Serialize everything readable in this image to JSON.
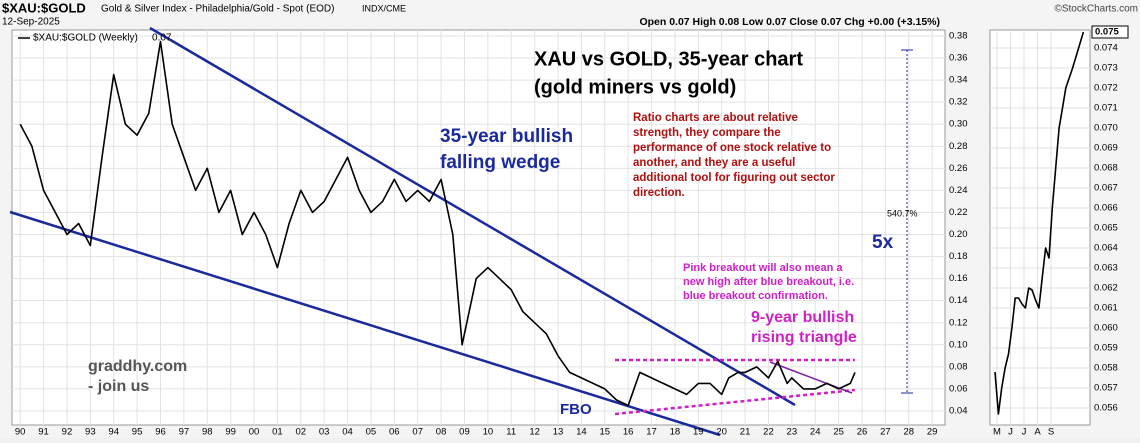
{
  "chart_data": [
    {
      "type": "line",
      "title": "$XAU:$GOLD",
      "subtitle": "Gold & Silver Index - Philadelphia/Gold - Spot (EOD)",
      "exchange": "INDX/CME",
      "date": "12-Sep-2025",
      "source": "©StockCharts.com",
      "quote": "Open 0.07 High 0.08 Low 0.07 Close 0.07 Chg +0.00 (+3.15%)",
      "last_label": "0.07",
      "grid": true,
      "annotations": {
        "headline": [
          "XAU vs GOLD, 35-year chart",
          "(gold miners vs gold)"
        ],
        "wedge": [
          "35-year bullish",
          "falling wedge"
        ],
        "note": [
          "Ratio charts are about relative",
          "strength, they compare the",
          "performance of one stock relative to",
          "another, and they are a useful",
          "additional tool for figuring out sector",
          "direction."
        ],
        "gain": "540.7%",
        "multiple": "5x",
        "pink": [
          "Pink breakout will also mean a",
          "new high after blue breakout, i.e.",
          "blue breakout confirmation."
        ],
        "triangle": [
          "9-year bullish",
          "rising triangle"
        ],
        "site": [
          "graddhy.com",
          "- join us"
        ],
        "fbo": "FBO"
      },
      "xlim": [
        1989.65,
        2029.55
      ],
      "ylim": [
        0.0273,
        0.3854
      ],
      "xticks": [
        {
          "value": 1990,
          "label": "90"
        },
        {
          "value": 1991,
          "label": "91"
        },
        {
          "value": 1992,
          "label": "92"
        },
        {
          "value": 1993,
          "label": "93"
        },
        {
          "value": 1994,
          "label": "94"
        },
        {
          "value": 1995,
          "label": "95"
        },
        {
          "value": 1996,
          "label": "96"
        },
        {
          "value": 1997,
          "label": "97"
        },
        {
          "value": 1998,
          "label": "98"
        },
        {
          "value": 1999,
          "label": "99"
        },
        {
          "value": 2000,
          "label": "00"
        },
        {
          "value": 2001,
          "label": "01"
        },
        {
          "value": 2002,
          "label": "02"
        },
        {
          "value": 2003,
          "label": "03"
        },
        {
          "value": 2004,
          "label": "04"
        },
        {
          "value": 2005,
          "label": "05"
        },
        {
          "value": 2006,
          "label": "06"
        },
        {
          "value": 2007,
          "label": "07"
        },
        {
          "value": 2008,
          "label": "08"
        },
        {
          "value": 2009,
          "label": "09"
        },
        {
          "value": 2010,
          "label": "10"
        },
        {
          "value": 2011,
          "label": "11"
        },
        {
          "value": 2012,
          "label": "12"
        },
        {
          "value": 2013,
          "label": "13"
        },
        {
          "value": 2014,
          "label": "14"
        },
        {
          "value": 2015,
          "label": "15"
        },
        {
          "value": 2016,
          "label": "16"
        },
        {
          "value": 2017,
          "label": "17"
        },
        {
          "value": 2018,
          "label": "18"
        },
        {
          "value": 2019,
          "label": "19"
        },
        {
          "value": 2020,
          "label": "20"
        },
        {
          "value": 2021,
          "label": "21"
        },
        {
          "value": 2022,
          "label": "22"
        },
        {
          "value": 2023,
          "label": "23"
        },
        {
          "value": 2024,
          "label": "24"
        },
        {
          "value": 2025,
          "label": "25"
        },
        {
          "value": 2026,
          "label": "26"
        },
        {
          "value": 2027,
          "label": "27"
        },
        {
          "value": 2028,
          "label": "28"
        },
        {
          "value": 2029,
          "label": "29"
        }
      ],
      "yticks": [
        0.04,
        0.06,
        0.08,
        {
          "value": 0.1,
          "label": "0.10"
        },
        0.12,
        0.14,
        0.16,
        0.18,
        {
          "value": 0.2,
          "label": "0.20"
        },
        0.22,
        0.24,
        0.26,
        0.28,
        {
          "value": 0.3,
          "label": "0.30"
        },
        0.32,
        0.34,
        0.36,
        0.38
      ],
      "x": [
        1990,
        1990.5,
        1991,
        1991.5,
        1992,
        1992.5,
        1993,
        1993.5,
        1994,
        1994.5,
        1995,
        1995.5,
        1996,
        1996.5,
        1997,
        1997.5,
        1998,
        1998.5,
        1999,
        1999.5,
        2000,
        2000.5,
        2001,
        2001.5,
        2002,
        2002.5,
        2003,
        2003.5,
        2004,
        2004.5,
        2005,
        2005.5,
        2006,
        2006.5,
        2007,
        2007.5,
        2008,
        2008.5,
        2008.9,
        2009.5,
        2010,
        2010.5,
        2011,
        2011.5,
        2012,
        2012.5,
        2013,
        2013.5,
        2014,
        2014.5,
        2015,
        2015.5,
        2016,
        2016.5,
        2017,
        2017.5,
        2018,
        2018.5,
        2019,
        2019.5,
        2020,
        2020.3,
        2020.7,
        2021,
        2021.5,
        2022,
        2022.4,
        2022.8,
        2023,
        2023.5,
        2024,
        2024.5,
        2025,
        2025.5,
        2025.7
      ],
      "series": [
        {
          "name": "$XAU:$GOLD (Weekly)",
          "color": "#000000",
          "values": [
            0.3,
            0.28,
            0.24,
            0.22,
            0.2,
            0.21,
            0.19,
            0.27,
            0.345,
            0.3,
            0.29,
            0.31,
            0.375,
            0.3,
            0.27,
            0.24,
            0.26,
            0.22,
            0.24,
            0.2,
            0.22,
            0.2,
            0.17,
            0.21,
            0.24,
            0.22,
            0.23,
            0.25,
            0.27,
            0.24,
            0.22,
            0.23,
            0.25,
            0.23,
            0.24,
            0.23,
            0.25,
            0.2,
            0.1,
            0.16,
            0.17,
            0.16,
            0.15,
            0.13,
            0.12,
            0.11,
            0.09,
            0.075,
            0.07,
            0.065,
            0.06,
            0.05,
            0.045,
            0.075,
            0.07,
            0.065,
            0.06,
            0.055,
            0.065,
            0.065,
            0.055,
            0.07,
            0.075,
            0.075,
            0.08,
            0.07,
            0.085,
            0.065,
            0.07,
            0.06,
            0.06,
            0.065,
            0.06,
            0.065,
            0.075
          ]
        }
      ]
    },
    {
      "type": "line",
      "current_value_label": "0.075",
      "grid": true,
      "xlim": [
        2.48,
        9.89
      ],
      "ylim": [
        0.05515,
        0.0749
      ],
      "xticks": [
        {
          "value": 3,
          "label": "M"
        },
        {
          "value": 4,
          "label": "J"
        },
        {
          "value": 5,
          "label": "J"
        },
        {
          "value": 6,
          "label": "A"
        },
        {
          "value": 7,
          "label": "S"
        }
      ],
      "yticks": [
        0.056,
        0.057,
        0.058,
        0.059,
        {
          "value": 0.06,
          "label": "0.060"
        },
        0.061,
        0.062,
        0.063,
        0.064,
        0.065,
        0.066,
        0.067,
        0.068,
        0.069,
        {
          "value": 0.07,
          "label": "0.070"
        },
        0.071,
        0.072,
        0.073,
        0.074
      ],
      "x": [
        2.85,
        3.1,
        3.35,
        3.6,
        3.85,
        4.1,
        4.35,
        4.6,
        4.85,
        5.1,
        5.35,
        5.6,
        5.85,
        6.1,
        6.35,
        6.6,
        6.85,
        7.1,
        7.35,
        7.6,
        7.85,
        8.1,
        8.35,
        8.6,
        9.4
      ],
      "series": [
        {
          "name": "$XAU:$GOLD",
          "color": "#000000",
          "values": [
            0.0578,
            0.0557,
            0.057,
            0.058,
            0.0587,
            0.06,
            0.0615,
            0.0615,
            0.0612,
            0.061,
            0.062,
            0.0619,
            0.0614,
            0.061,
            0.0625,
            0.064,
            0.0635,
            0.066,
            0.068,
            0.07,
            0.071,
            0.072,
            0.0725,
            0.073,
            0.0748
          ]
        }
      ]
    }
  ]
}
